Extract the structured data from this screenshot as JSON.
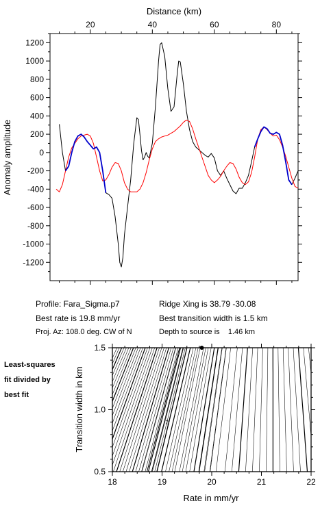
{
  "info": {
    "profile": "Profile: Fara_Sigma.p7",
    "best_rate": "Best rate is 19.8 mm/yr",
    "proj_az": "Proj. Az: 108.0 deg. CW of N",
    "ridge_xing": "Ridge Xing is 38.79 -30.08",
    "best_width": "Best transition width is 1.5 km",
    "depth": "Depth to source is    1.46 km"
  },
  "side_note": [
    "Least-squares",
    "fit divided by",
    "best fit"
  ],
  "colors": {
    "observed": "#000000",
    "observed_fit_segments": "#0000cc",
    "model": "#ff0000",
    "contour": "#000000"
  },
  "chart_data": [
    {
      "type": "line",
      "xlabel": "Distance (km)",
      "ylabel": "Anomaly amplitude",
      "xlim": [
        7,
        87
      ],
      "ylim": [
        -1400,
        1300
      ],
      "xticks": [
        20,
        40,
        60,
        80
      ],
      "yticks": [
        -1200,
        -1000,
        -800,
        -600,
        -400,
        -200,
        0,
        200,
        400,
        600,
        800,
        1000,
        1200
      ],
      "x_axis_position": "top",
      "series": [
        {
          "role": "observed",
          "color": "#000000",
          "points": [
            [
              10,
              310
            ],
            [
              11,
              0
            ],
            [
              12,
              -200
            ],
            [
              13,
              -150
            ],
            [
              14,
              0
            ],
            [
              15,
              120
            ],
            [
              16,
              180
            ],
            [
              17,
              200
            ],
            [
              18,
              170
            ],
            [
              19,
              120
            ],
            [
              20,
              80
            ],
            [
              21,
              40
            ],
            [
              22,
              60
            ],
            [
              23,
              0
            ],
            [
              24,
              -200
            ],
            [
              25,
              -440
            ],
            [
              26,
              -460
            ],
            [
              27,
              -500
            ],
            [
              28,
              -700
            ],
            [
              29,
              -1000
            ],
            [
              29.5,
              -1200
            ],
            [
              30,
              -1250
            ],
            [
              30.5,
              -1150
            ],
            [
              31,
              -900
            ],
            [
              32,
              -600
            ],
            [
              33,
              -300
            ],
            [
              34,
              100
            ],
            [
              35,
              380
            ],
            [
              35.5,
              360
            ],
            [
              36,
              200
            ],
            [
              36.5,
              20
            ],
            [
              37,
              -80
            ],
            [
              37.5,
              -50
            ],
            [
              38,
              0
            ],
            [
              38.5,
              -40
            ],
            [
              39,
              -60
            ],
            [
              40,
              100
            ],
            [
              41,
              500
            ],
            [
              42,
              1000
            ],
            [
              42.5,
              1180
            ],
            [
              43,
              1200
            ],
            [
              44,
              1050
            ],
            [
              45,
              700
            ],
            [
              46,
              450
            ],
            [
              47,
              500
            ],
            [
              48,
              850
            ],
            [
              48.5,
              1000
            ],
            [
              49,
              990
            ],
            [
              50,
              750
            ],
            [
              51,
              450
            ],
            [
              52,
              250
            ],
            [
              53,
              120
            ],
            [
              54,
              60
            ],
            [
              55,
              30
            ],
            [
              56,
              0
            ],
            [
              57,
              -30
            ],
            [
              58,
              -50
            ],
            [
              59,
              -10
            ],
            [
              60,
              -60
            ],
            [
              61,
              -200
            ],
            [
              62,
              -250
            ],
            [
              63,
              -200
            ],
            [
              64,
              -280
            ],
            [
              65,
              -350
            ],
            [
              66,
              -420
            ],
            [
              67,
              -450
            ],
            [
              68,
              -390
            ],
            [
              69,
              -390
            ],
            [
              70,
              -330
            ],
            [
              71,
              -250
            ],
            [
              72,
              -100
            ],
            [
              73,
              60
            ],
            [
              74,
              150
            ],
            [
              75,
              230
            ],
            [
              76,
              280
            ],
            [
              77,
              260
            ],
            [
              78,
              210
            ],
            [
              79,
              200
            ],
            [
              80,
              220
            ],
            [
              81,
              200
            ],
            [
              82,
              80
            ],
            [
              83,
              -100
            ],
            [
              84,
              -300
            ],
            [
              85,
              -350
            ],
            [
              86,
              -280
            ],
            [
              87,
              -200
            ]
          ]
        },
        {
          "role": "observed_fit_segment",
          "color": "#0000cc",
          "points": [
            [
              12,
              -200
            ],
            [
              13,
              -150
            ],
            [
              14,
              0
            ],
            [
              15,
              120
            ],
            [
              16,
              180
            ],
            [
              17,
              200
            ],
            [
              18,
              170
            ],
            [
              19,
              120
            ],
            [
              20,
              80
            ],
            [
              21,
              40
            ],
            [
              22,
              60
            ],
            [
              23,
              0
            ],
            [
              24,
              -200
            ],
            [
              25,
              -440
            ]
          ]
        },
        {
          "role": "observed_fit_segment",
          "color": "#0000cc",
          "points": [
            [
              73,
              60
            ],
            [
              74,
              150
            ],
            [
              75,
              230
            ],
            [
              76,
              280
            ],
            [
              77,
              260
            ],
            [
              78,
              210
            ],
            [
              79,
              200
            ],
            [
              80,
              220
            ],
            [
              81,
              200
            ],
            [
              82,
              80
            ],
            [
              83,
              -100
            ],
            [
              84,
              -300
            ],
            [
              85,
              -350
            ]
          ]
        },
        {
          "role": "model",
          "color": "#ff0000",
          "points": [
            [
              9,
              -400
            ],
            [
              10,
              -430
            ],
            [
              11,
              -350
            ],
            [
              12,
              -200
            ],
            [
              13,
              -50
            ],
            [
              14,
              50
            ],
            [
              15,
              100
            ],
            [
              16,
              150
            ],
            [
              17,
              180
            ],
            [
              18,
              190
            ],
            [
              19,
              200
            ],
            [
              20,
              180
            ],
            [
              21,
              100
            ],
            [
              22,
              -50
            ],
            [
              23,
              -200
            ],
            [
              24,
              -310
            ],
            [
              25,
              -300
            ],
            [
              26,
              -240
            ],
            [
              27,
              -160
            ],
            [
              28,
              -110
            ],
            [
              29,
              -120
            ],
            [
              30,
              -200
            ],
            [
              31,
              -330
            ],
            [
              32,
              -400
            ],
            [
              33,
              -430
            ],
            [
              34,
              -430
            ],
            [
              35,
              -430
            ],
            [
              36,
              -400
            ],
            [
              37,
              -330
            ],
            [
              38,
              -220
            ],
            [
              39,
              -80
            ],
            [
              40,
              40
            ],
            [
              41,
              120
            ],
            [
              42,
              150
            ],
            [
              43,
              170
            ],
            [
              44,
              180
            ],
            [
              45,
              190
            ],
            [
              46,
              210
            ],
            [
              47,
              230
            ],
            [
              48,
              260
            ],
            [
              49,
              290
            ],
            [
              50,
              330
            ],
            [
              51,
              355
            ],
            [
              52,
              340
            ],
            [
              53,
              260
            ],
            [
              54,
              150
            ],
            [
              55,
              50
            ],
            [
              56,
              -50
            ],
            [
              57,
              -150
            ],
            [
              58,
              -250
            ],
            [
              59,
              -300
            ],
            [
              60,
              -330
            ],
            [
              61,
              -300
            ],
            [
              62,
              -260
            ],
            [
              63,
              -200
            ],
            [
              64,
              -150
            ],
            [
              65,
              -110
            ],
            [
              66,
              -120
            ],
            [
              67,
              -180
            ],
            [
              68,
              -270
            ],
            [
              69,
              -330
            ],
            [
              70,
              -350
            ],
            [
              71,
              -320
            ],
            [
              72,
              -220
            ],
            [
              73,
              -50
            ],
            [
              74,
              150
            ],
            [
              75,
              250
            ],
            [
              76,
              280
            ],
            [
              77,
              250
            ],
            [
              78,
              210
            ],
            [
              79,
              180
            ],
            [
              80,
              190
            ],
            [
              81,
              140
            ],
            [
              82,
              60
            ],
            [
              83,
              -40
            ],
            [
              84,
              -160
            ],
            [
              85,
              -280
            ],
            [
              86,
              -370
            ],
            [
              87,
              -390
            ]
          ]
        }
      ]
    },
    {
      "type": "contour",
      "xlabel": "Rate in mm/yr",
      "ylabel": "Transition width in km",
      "xlim": [
        18,
        22
      ],
      "ylim": [
        0.5,
        1.5
      ],
      "xticks": [
        18,
        19,
        20,
        21,
        22
      ],
      "yticks": [
        0.5,
        1.0,
        1.5
      ],
      "best_fit_marker": {
        "rate": 19.8,
        "width": 1.5
      },
      "minimum_label": {
        "text": "2",
        "rate": 19.1,
        "width": 0.9
      }
    }
  ]
}
